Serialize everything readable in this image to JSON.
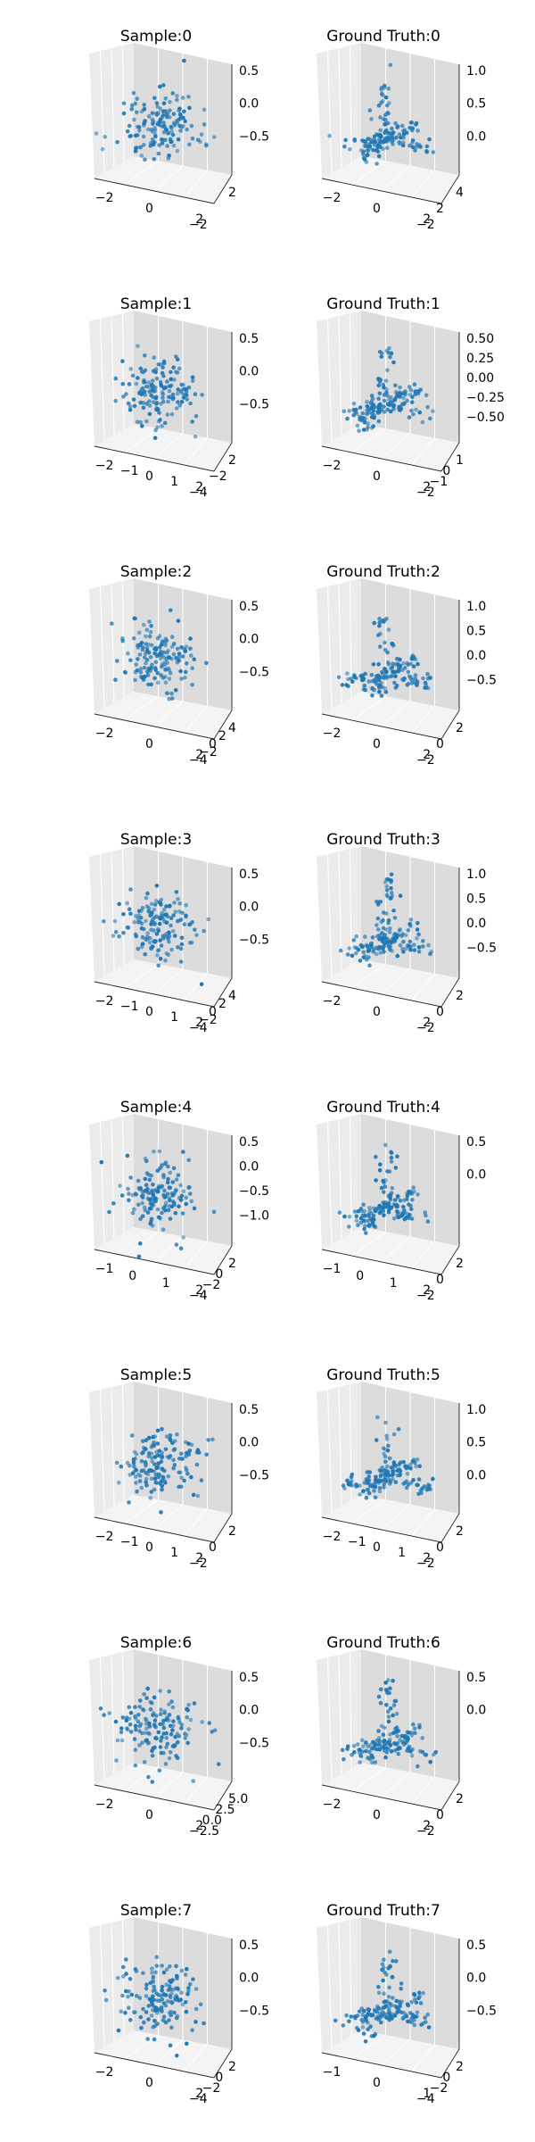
{
  "chart_data": [
    {
      "type": "scatter",
      "title": "Sample:0",
      "ztick_labels": [
        "0.5",
        "0.0",
        "−0.5"
      ],
      "xtick_labels": [
        "−2",
        "0",
        "2"
      ],
      "ytick_labels": [
        "2",
        "−2"
      ],
      "n_points": 150
    },
    {
      "type": "scatter",
      "title": "Ground Truth:0",
      "ztick_labels": [
        "1.0",
        "0.5",
        "0.0"
      ],
      "xtick_labels": [
        "−2",
        "0",
        "2"
      ],
      "ytick_labels": [
        "4",
        "2",
        "−2"
      ],
      "n_points": 150
    },
    {
      "type": "scatter",
      "title": "Sample:1",
      "ztick_labels": [
        "0.5",
        "0.0",
        "−0.5"
      ],
      "xtick_labels": [
        "−2",
        "−1",
        "0",
        "1",
        "2"
      ],
      "ytick_labels": [
        "2",
        "−2",
        "−4"
      ],
      "n_points": 150
    },
    {
      "type": "scatter",
      "title": "Ground Truth:1",
      "ztick_labels": [
        "0.50",
        "0.25",
        "0.00",
        "−0.25",
        "−0.50"
      ],
      "xtick_labels": [
        "−2",
        "0",
        "2"
      ],
      "ytick_labels": [
        "1",
        "0",
        "−1",
        "−2"
      ],
      "n_points": 150
    },
    {
      "type": "scatter",
      "title": "Sample:2",
      "ztick_labels": [
        "0.5",
        "0.0",
        "−0.5"
      ],
      "xtick_labels": [
        "−2",
        "0",
        "2"
      ],
      "ytick_labels": [
        "4",
        "2",
        "0",
        "−2",
        "−4"
      ],
      "n_points": 150
    },
    {
      "type": "scatter",
      "title": "Ground Truth:2",
      "ztick_labels": [
        "1.0",
        "0.5",
        "0.0",
        "−0.5"
      ],
      "xtick_labels": [
        "−2",
        "0",
        "2"
      ],
      "ytick_labels": [
        "2",
        "0",
        "−2"
      ],
      "n_points": 150
    },
    {
      "type": "scatter",
      "title": "Sample:3",
      "ztick_labels": [
        "0.5",
        "0.0",
        "−0.5"
      ],
      "xtick_labels": [
        "−2",
        "−1",
        "0",
        "1",
        "2"
      ],
      "ytick_labels": [
        "4",
        "2",
        "0",
        "−2",
        "−4"
      ],
      "n_points": 150
    },
    {
      "type": "scatter",
      "title": "Ground Truth:3",
      "ztick_labels": [
        "1.0",
        "0.5",
        "0.0",
        "−0.5"
      ],
      "xtick_labels": [
        "−2",
        "0",
        "2"
      ],
      "ytick_labels": [
        "2",
        "0",
        "−2"
      ],
      "n_points": 150
    },
    {
      "type": "scatter",
      "title": "Sample:4",
      "ztick_labels": [
        "0.5",
        "0.0",
        "−0.5",
        "−1.0"
      ],
      "xtick_labels": [
        "−1",
        "0",
        "1",
        "2"
      ],
      "ytick_labels": [
        "2",
        "0",
        "−2",
        "−4"
      ],
      "n_points": 150
    },
    {
      "type": "scatter",
      "title": "Ground Truth:4",
      "ztick_labels": [
        "0.5",
        "0.0"
      ],
      "xtick_labels": [
        "−1",
        "0",
        "1",
        "2"
      ],
      "ytick_labels": [
        "2",
        "0",
        "−2"
      ],
      "n_points": 150
    },
    {
      "type": "scatter",
      "title": "Sample:5",
      "ztick_labels": [
        "0.5",
        "0.0",
        "−0.5"
      ],
      "xtick_labels": [
        "−2",
        "−1",
        "0",
        "1",
        "2"
      ],
      "ytick_labels": [
        "2",
        "0",
        "−2"
      ],
      "n_points": 150
    },
    {
      "type": "scatter",
      "title": "Ground Truth:5",
      "ztick_labels": [
        "1.0",
        "0.5",
        "0.0"
      ],
      "xtick_labels": [
        "−2",
        "−1",
        "0",
        "1",
        "2"
      ],
      "ytick_labels": [
        "2",
        "0",
        "−2"
      ],
      "n_points": 150
    },
    {
      "type": "scatter",
      "title": "Sample:6",
      "ztick_labels": [
        "0.5",
        "0.0",
        "−0.5"
      ],
      "xtick_labels": [
        "−2",
        "0",
        "2"
      ],
      "ytick_labels": [
        "5.0",
        "2.5",
        "0.0",
        "−2.5"
      ],
      "n_points": 150
    },
    {
      "type": "scatter",
      "title": "Ground Truth:6",
      "ztick_labels": [
        "0.5",
        "0.0"
      ],
      "xtick_labels": [
        "−2",
        "0",
        "2"
      ],
      "ytick_labels": [
        "2",
        "0",
        "−2"
      ],
      "n_points": 150
    },
    {
      "type": "scatter",
      "title": "Sample:7",
      "ztick_labels": [
        "0.5",
        "0.0",
        "−0.5"
      ],
      "xtick_labels": [
        "−2",
        "0",
        "2"
      ],
      "ytick_labels": [
        "2",
        "0",
        "−2",
        "−4"
      ],
      "n_points": 150
    },
    {
      "type": "scatter",
      "title": "Ground Truth:7",
      "ztick_labels": [
        "0.5",
        "0.0",
        "−0.5"
      ],
      "xtick_labels": [
        "−1",
        "0",
        "1"
      ],
      "ytick_labels": [
        "2",
        "0",
        "−2",
        "−4"
      ],
      "n_points": 150
    }
  ],
  "colors": {
    "marker": "#1f77b4",
    "pane_left": "#ebebeb",
    "pane_right": "#dcdcdc",
    "pane_floor": "#f4f4f4"
  }
}
